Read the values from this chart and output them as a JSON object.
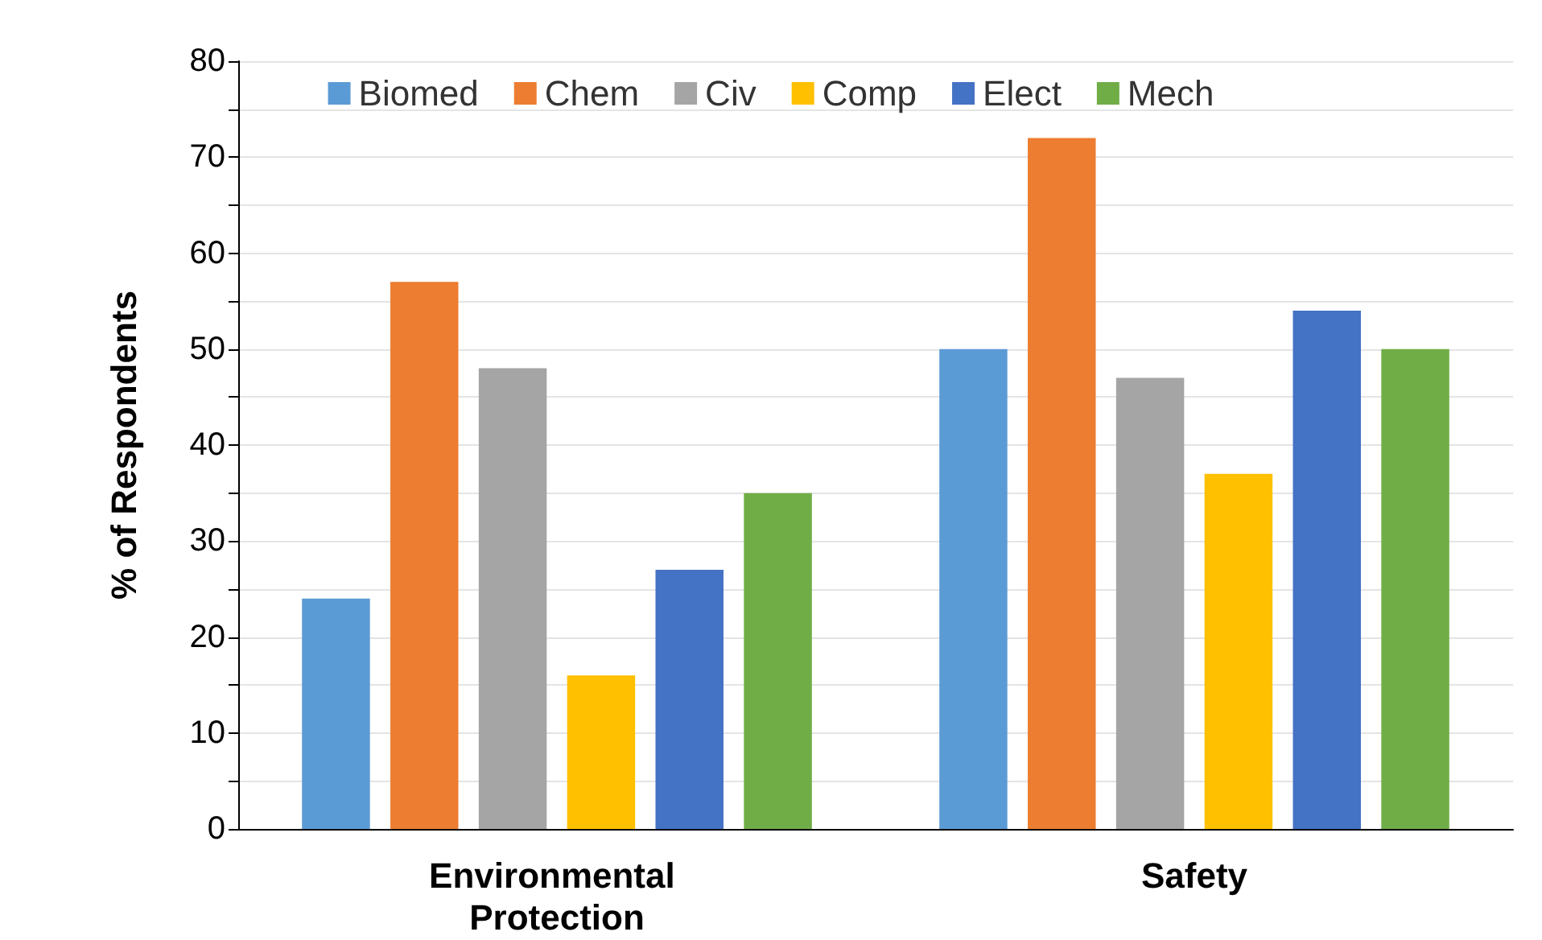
{
  "chart_data": {
    "type": "bar",
    "ylabel": "% of Respondents",
    "categories": [
      "Environmental Protection",
      "Safety"
    ],
    "series": [
      {
        "name": "Biomed",
        "color": "#5b9bd5",
        "values": [
          24,
          50
        ]
      },
      {
        "name": "Chem",
        "color": "#ed7d31",
        "values": [
          57,
          72
        ]
      },
      {
        "name": "Civ",
        "color": "#a5a5a5",
        "values": [
          48,
          47
        ]
      },
      {
        "name": "Comp",
        "color": "#ffc000",
        "values": [
          16,
          37
        ]
      },
      {
        "name": "Elect",
        "color": "#4472c4",
        "values": [
          27,
          54
        ]
      },
      {
        "name": "Mech",
        "color": "#70ad47",
        "values": [
          35,
          50
        ]
      }
    ],
    "ylim": [
      0,
      80
    ],
    "yticks": [
      0,
      {
        "value": 5,
        "label": null
      },
      10,
      {
        "value": 15,
        "label": null
      },
      20,
      {
        "value": 25,
        "label": null
      },
      30,
      {
        "value": 35,
        "label": null
      },
      40,
      {
        "value": 45,
        "label": null
      },
      50,
      {
        "value": 55,
        "label": null
      },
      60,
      {
        "value": 65,
        "label": null
      },
      70,
      {
        "value": 75,
        "label": null
      },
      80
    ],
    "grid": "y",
    "legend": "top"
  }
}
